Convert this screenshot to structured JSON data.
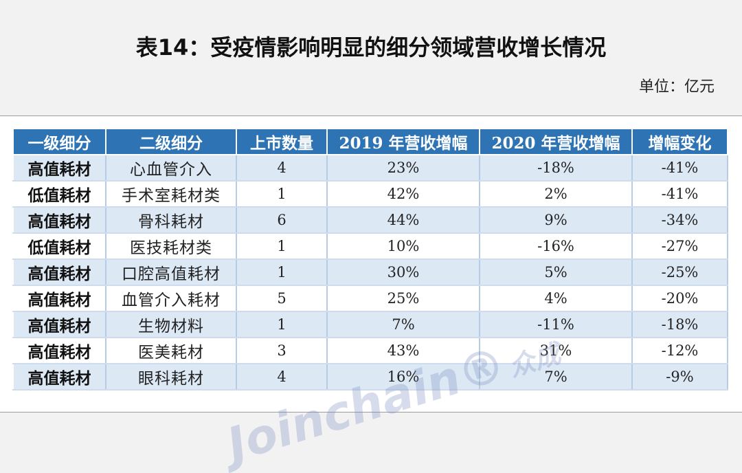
{
  "header": {
    "title": "表14：受疫情影响明显的细分领域营收增长情况",
    "unit": "单位：亿元"
  },
  "table": {
    "columns": [
      "一级细分",
      "二级细分",
      "上市数量",
      "2019 年营收增幅",
      "2020 年营收增幅",
      "增幅变化"
    ],
    "rows": [
      [
        "高值耗材",
        "心血管介入",
        "4",
        "23%",
        "-18%",
        "-41%"
      ],
      [
        "低值耗材",
        "手术室耗材类",
        "1",
        "42%",
        "2%",
        "-41%"
      ],
      [
        "高值耗材",
        "骨科耗材",
        "6",
        "44%",
        "9%",
        "-34%"
      ],
      [
        "低值耗材",
        "医技耗材类",
        "1",
        "10%",
        "-16%",
        "-27%"
      ],
      [
        "高值耗材",
        "口腔高值耗材",
        "1",
        "30%",
        "5%",
        "-25%"
      ],
      [
        "高值耗材",
        "血管介入耗材",
        "5",
        "25%",
        "4%",
        "-20%"
      ],
      [
        "高值耗材",
        "生物材料",
        "1",
        "7%",
        "-11%",
        "-18%"
      ],
      [
        "高值耗材",
        "医美耗材",
        "3",
        "43%",
        "31%",
        "-12%"
      ],
      [
        "高值耗材",
        "眼科耗材",
        "4",
        "16%",
        "7%",
        "-9%"
      ]
    ]
  },
  "watermark": {
    "latin": "Joinchain",
    "mark": "®",
    "chinese": "众成"
  },
  "colors": {
    "header_bg": "#2e74b5",
    "stripe": "#dde8f5",
    "page_bg": "#f2f2f2"
  }
}
